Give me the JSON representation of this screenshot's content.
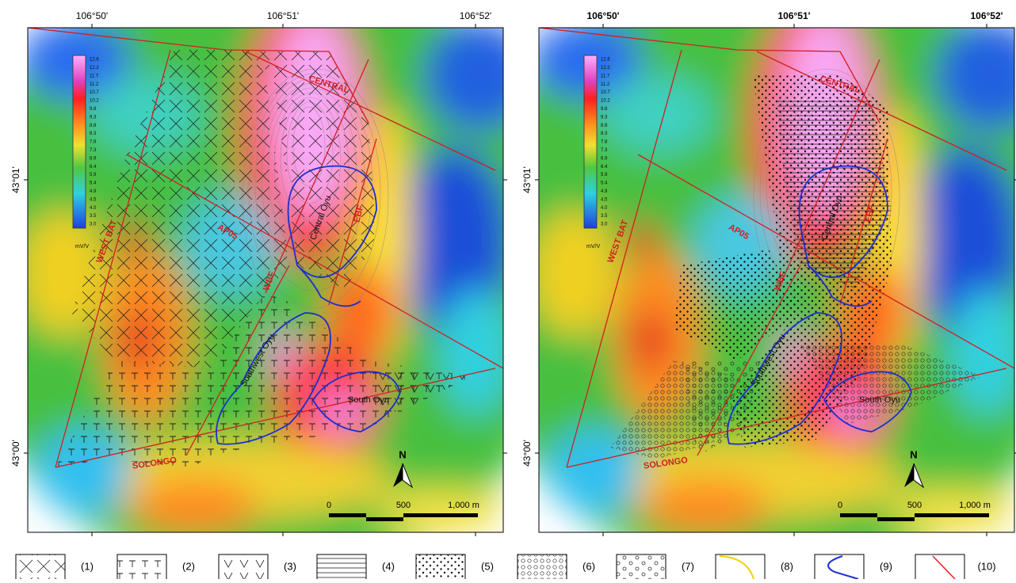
{
  "axes": {
    "longitude": [
      "106°50'",
      "106°51'",
      "106°52'"
    ],
    "latitude": [
      "43°01'",
      "43°00'"
    ]
  },
  "colorbar": {
    "values": [
      "12.6",
      "12.2",
      "11.7",
      "11.2",
      "10.7",
      "10.2",
      "9.8",
      "9.3",
      "8.8",
      "8.3",
      "7.8",
      "7.3",
      "6.9",
      "6.4",
      "5.9",
      "5.4",
      "4.9",
      "4.5",
      "4.0",
      "3.5",
      "3.0"
    ],
    "unit": "mV/V"
  },
  "map_labels": {
    "faults": [
      "CENTRAL",
      "AP05",
      "WEST BAT",
      "WBF",
      "EBF",
      "SOLONGO"
    ],
    "deposits": [
      "Central Oyu",
      "Southwest Oyu",
      "South Oyu"
    ],
    "north": "N",
    "scale": [
      "0",
      "500",
      "1,000 m"
    ]
  },
  "legend": [
    "(1)",
    "(2)",
    "(3)",
    "(4)",
    "(5)",
    "(6)",
    "(7)",
    "(8)",
    "(9)",
    "(10)"
  ]
}
